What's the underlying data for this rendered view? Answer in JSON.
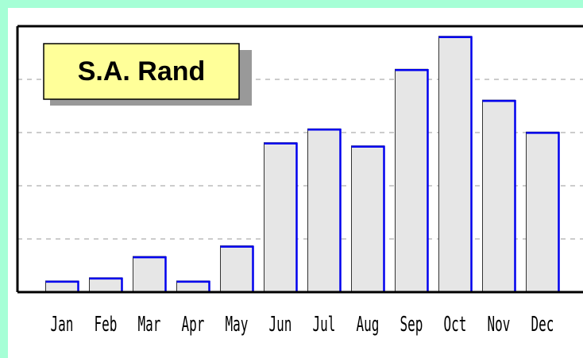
{
  "chart_data": {
    "type": "bar",
    "categories": [
      "Jan",
      "Feb",
      "Mar",
      "Apr",
      "May",
      "Jun",
      "Jul",
      "Aug",
      "Sep",
      "Oct",
      "Nov",
      "Dec"
    ],
    "series": [
      {
        "name": "S.A. Rand",
        "color": "#0000ee",
        "values": [
          0.21,
          0.27,
          0.67,
          0.21,
          0.87,
          2.81,
          3.07,
          2.75,
          4.19,
          4.81,
          3.61,
          3.01
        ]
      }
    ],
    "ylim": [
      0,
      5
    ],
    "yticks": [
      1,
      2,
      3,
      4
    ],
    "grid": true
  }
}
